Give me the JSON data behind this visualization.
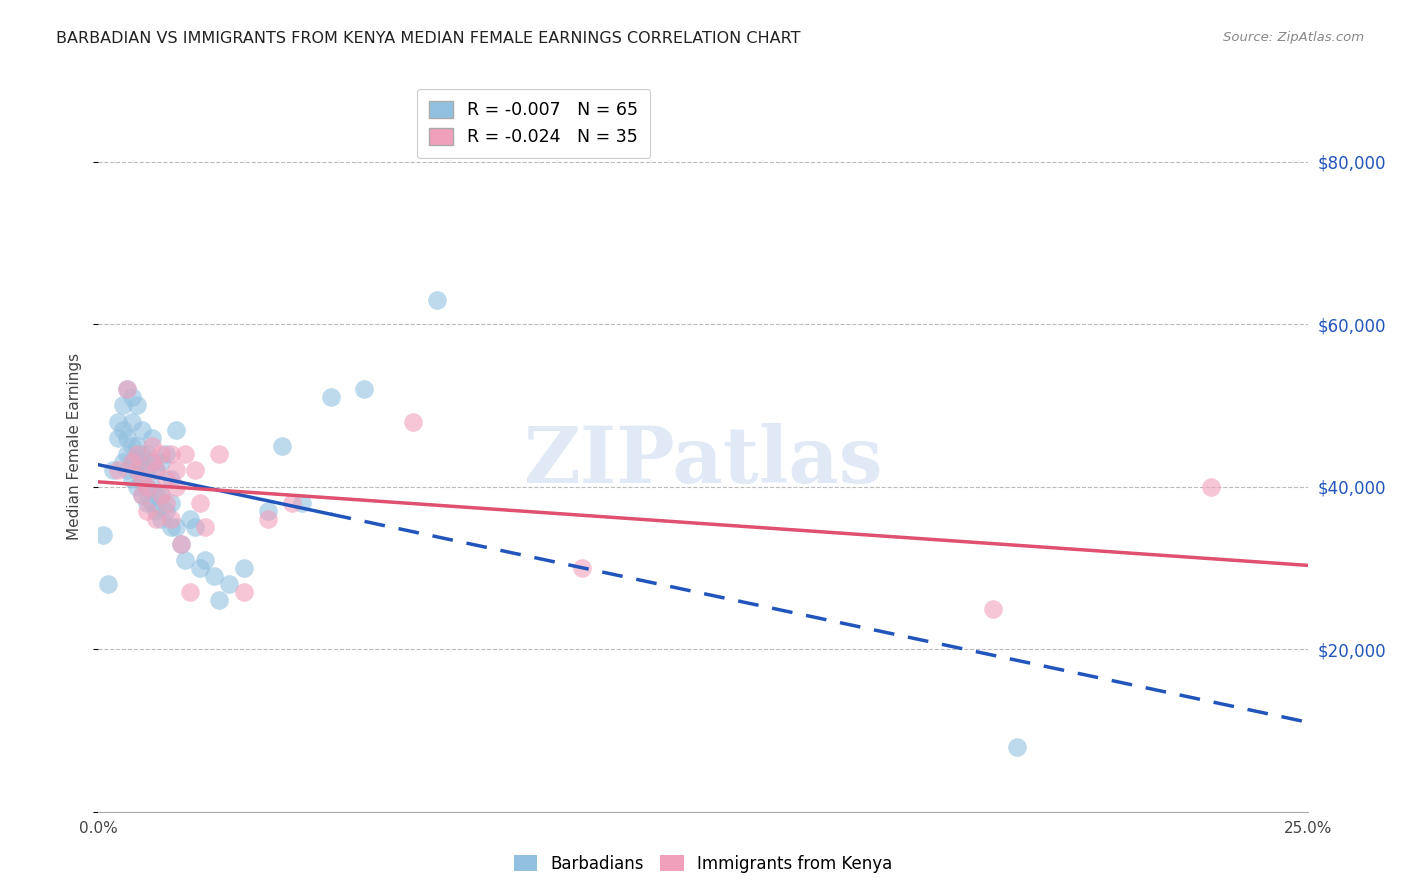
{
  "title": "BARBADIAN VS IMMIGRANTS FROM KENYA MEDIAN FEMALE EARNINGS CORRELATION CHART",
  "source": "Source: ZipAtlas.com",
  "ylabel": "Median Female Earnings",
  "xlim": [
    0.0,
    0.25
  ],
  "ylim": [
    0,
    90000
  ],
  "yticks": [
    0,
    20000,
    40000,
    60000,
    80000
  ],
  "ytick_labels": [
    "",
    "$20,000",
    "$40,000",
    "$60,000",
    "$80,000"
  ],
  "xticks": [
    0.0,
    0.05,
    0.1,
    0.15,
    0.2,
    0.25
  ],
  "xtick_labels": [
    "0.0%",
    "",
    "",
    "",
    "",
    "25.0%"
  ],
  "legend1_label": "R = -0.007   N = 65",
  "legend2_label": "R = -0.024   N = 35",
  "bottom_legend1": "Barbadians",
  "bottom_legend2": "Immigrants from Kenya",
  "color_blue": "#92C0E0",
  "color_pink": "#F0A0BB",
  "line_blue": "#2255BB",
  "line_pink": "#E05070",
  "watermark": "ZIPatlas",
  "background_color": "#FFFFFF",
  "blue_x": [
    0.001,
    0.002,
    0.003,
    0.004,
    0.004,
    0.005,
    0.005,
    0.005,
    0.006,
    0.006,
    0.006,
    0.006,
    0.007,
    0.007,
    0.007,
    0.007,
    0.007,
    0.008,
    0.008,
    0.008,
    0.008,
    0.008,
    0.009,
    0.009,
    0.009,
    0.009,
    0.009,
    0.01,
    0.01,
    0.01,
    0.01,
    0.011,
    0.011,
    0.011,
    0.011,
    0.012,
    0.012,
    0.012,
    0.013,
    0.013,
    0.013,
    0.014,
    0.014,
    0.015,
    0.015,
    0.015,
    0.016,
    0.016,
    0.017,
    0.018,
    0.019,
    0.02,
    0.021,
    0.022,
    0.024,
    0.025,
    0.027,
    0.03,
    0.035,
    0.038,
    0.042,
    0.048,
    0.055,
    0.07,
    0.19
  ],
  "blue_y": [
    34000,
    28000,
    42000,
    46000,
    48000,
    43000,
    47000,
    50000,
    42000,
    44000,
    46000,
    52000,
    41000,
    43000,
    45000,
    48000,
    51000,
    40000,
    42000,
    43000,
    45000,
    50000,
    39000,
    41000,
    43000,
    44000,
    47000,
    38000,
    40000,
    42000,
    44000,
    38000,
    40000,
    43000,
    46000,
    37000,
    39000,
    42000,
    36000,
    39000,
    43000,
    37000,
    44000,
    35000,
    38000,
    41000,
    35000,
    47000,
    33000,
    31000,
    36000,
    35000,
    30000,
    31000,
    29000,
    26000,
    28000,
    30000,
    37000,
    45000,
    38000,
    51000,
    52000,
    63000,
    8000
  ],
  "pink_x": [
    0.004,
    0.006,
    0.007,
    0.008,
    0.008,
    0.009,
    0.009,
    0.01,
    0.01,
    0.011,
    0.011,
    0.012,
    0.012,
    0.013,
    0.013,
    0.014,
    0.014,
    0.015,
    0.015,
    0.016,
    0.016,
    0.017,
    0.018,
    0.019,
    0.02,
    0.021,
    0.022,
    0.025,
    0.03,
    0.035,
    0.04,
    0.065,
    0.1,
    0.185,
    0.23
  ],
  "pink_y": [
    42000,
    52000,
    43000,
    42000,
    44000,
    39000,
    41000,
    37000,
    40000,
    43000,
    45000,
    36000,
    42000,
    39000,
    44000,
    41000,
    38000,
    36000,
    44000,
    40000,
    42000,
    33000,
    44000,
    27000,
    42000,
    38000,
    35000,
    44000,
    27000,
    36000,
    38000,
    48000,
    30000,
    25000,
    40000
  ]
}
